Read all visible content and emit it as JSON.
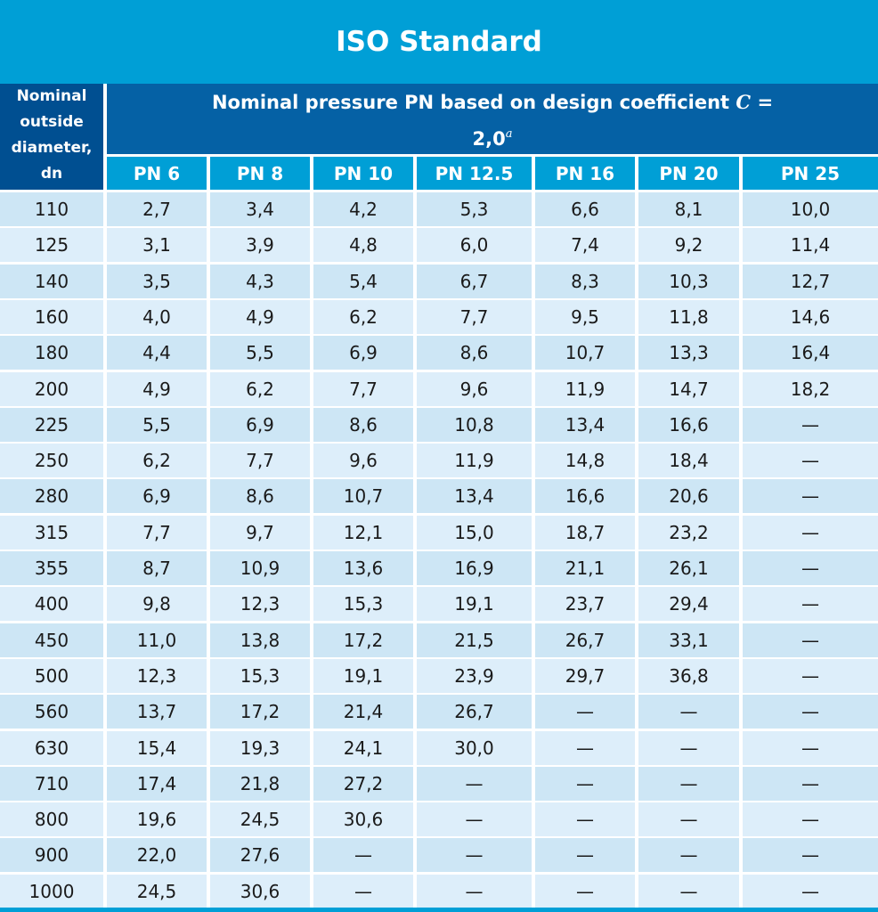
{
  "title": "ISO Standard",
  "header": {
    "left_lines": [
      "Nominal",
      "outside",
      "diameter,",
      "dn"
    ],
    "top_line1_text": "Nominal pressure PN based on design coefficient",
    "top_line1_symbol": "C",
    "top_line1_eq": "=",
    "top_line2_value": "2,0",
    "top_line2_sup": "a"
  },
  "columns": [
    "PN 6",
    "PN 8",
    "PN 10",
    "PN 12.5",
    "PN 16",
    "PN 20",
    "PN 25"
  ],
  "rows": [
    [
      "110",
      "2,7",
      "3,4",
      "4,2",
      "5,3",
      "6,6",
      "8,1",
      "10,0"
    ],
    [
      "125",
      "3,1",
      "3,9",
      "4,8",
      "6,0",
      "7,4",
      "9,2",
      "11,4"
    ],
    [
      "140",
      "3,5",
      "4,3",
      "5,4",
      "6,7",
      "8,3",
      "10,3",
      "12,7"
    ],
    [
      "160",
      "4,0",
      "4,9",
      "6,2",
      "7,7",
      "9,5",
      "11,8",
      "14,6"
    ],
    [
      "180",
      "4,4",
      "5,5",
      "6,9",
      "8,6",
      "10,7",
      "13,3",
      "16,4"
    ],
    [
      "200",
      "4,9",
      "6,2",
      "7,7",
      "9,6",
      "11,9",
      "14,7",
      "18,2"
    ],
    [
      "225",
      "5,5",
      "6,9",
      "8,6",
      "10,8",
      "13,4",
      "16,6",
      "—"
    ],
    [
      "250",
      "6,2",
      "7,7",
      "9,6",
      "11,9",
      "14,8",
      "18,4",
      "—"
    ],
    [
      "280",
      "6,9",
      "8,6",
      "10,7",
      "13,4",
      "16,6",
      "20,6",
      "—"
    ],
    [
      "315",
      "7,7",
      "9,7",
      "12,1",
      "15,0",
      "18,7",
      "23,2",
      "—"
    ],
    [
      "355",
      "8,7",
      "10,9",
      "13,6",
      "16,9",
      "21,1",
      "26,1",
      "—"
    ],
    [
      "400",
      "9,8",
      "12,3",
      "15,3",
      "19,1",
      "23,7",
      "29,4",
      "—"
    ],
    [
      "450",
      "11,0",
      "13,8",
      "17,2",
      "21,5",
      "26,7",
      "33,1",
      "—"
    ],
    [
      "500",
      "12,3",
      "15,3",
      "19,1",
      "23,9",
      "29,7",
      "36,8",
      "—"
    ],
    [
      "560",
      "13,7",
      "17,2",
      "21,4",
      "26,7",
      "—",
      "—",
      "—"
    ],
    [
      "630",
      "15,4",
      "19,3",
      "24,1",
      "30,0",
      "—",
      "—",
      "—"
    ],
    [
      "710",
      "17,4",
      "21,8",
      "27,2",
      "—",
      "—",
      "—",
      "—"
    ],
    [
      "800",
      "19,6",
      "24,5",
      "30,6",
      "—",
      "—",
      "—",
      "—"
    ],
    [
      "900",
      "22,0",
      "27,6",
      "—",
      "—",
      "—",
      "—",
      "—"
    ],
    [
      "1000",
      "24,5",
      "30,6",
      "—",
      "—",
      "—",
      "—",
      "—"
    ]
  ],
  "colors": {
    "title_bg": "#009fd6",
    "header_dark": "#004f91",
    "header_mid": "#0561a5",
    "column_head": "#009fd6",
    "row_a": "#cde6f5",
    "row_b": "#ddeefa"
  }
}
